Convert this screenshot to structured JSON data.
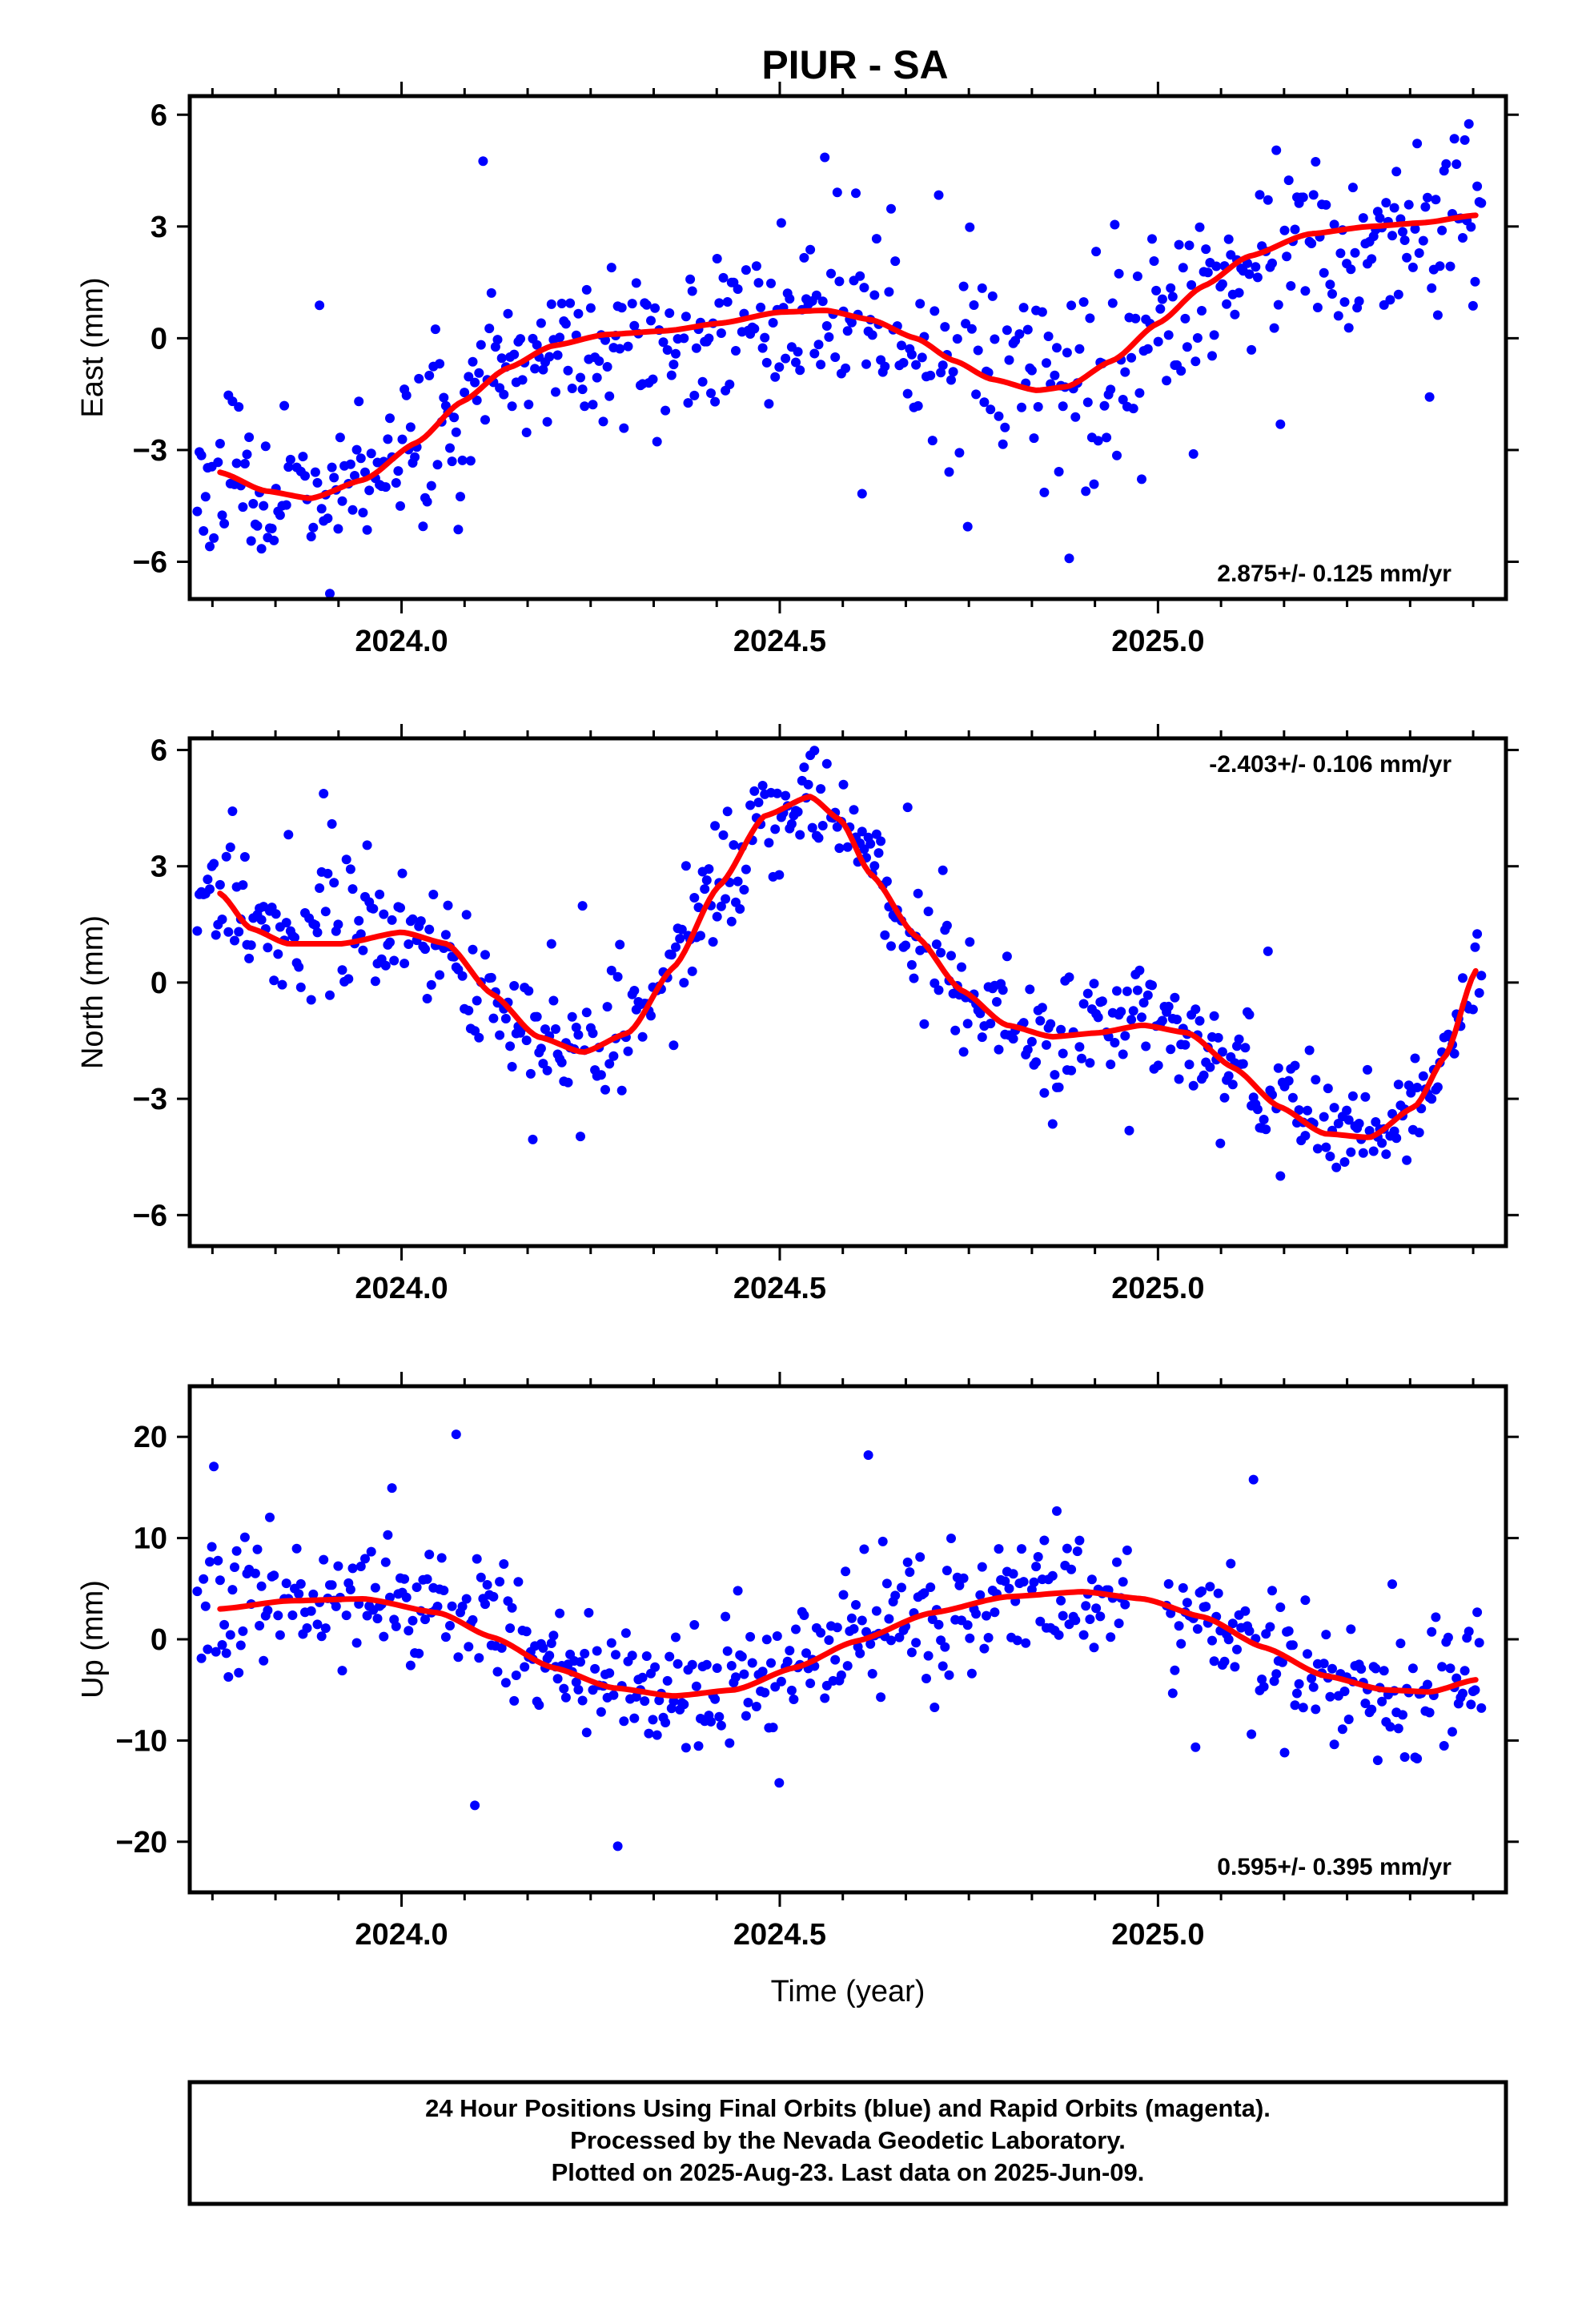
{
  "title": "PIUR - SA",
  "footer": {
    "lines": [
      "24 Hour Positions Using Final Orbits (blue) and Rapid Orbits (magenta).",
      "Processed by the Nevada Geodetic Laboratory.",
      "Plotted on 2025-Aug-23. Last data on 2025-Jun-09."
    ]
  },
  "colors": {
    "points": "#0000ff",
    "fit": "#ff0000",
    "frame": "#000000"
  },
  "chart_data": [
    {
      "type": "scatter",
      "ylabel": "East (mm)",
      "xlabel": "",
      "xlim": [
        2023.72,
        2025.46
      ],
      "ylim": [
        -7,
        6.5
      ],
      "xticks": [
        2024.0,
        2024.5,
        2025.0
      ],
      "xtick_labels": [
        "2024.0",
        "2024.5",
        "2025.0"
      ],
      "yticks": [
        -6,
        -3,
        0,
        3,
        6
      ],
      "ytick_labels": [
        "−6",
        "−3",
        "0",
        "3",
        "6"
      ],
      "rate_label": "2.875+/- 0.125 mm/yr",
      "rate_position": "bottom-right",
      "seed": 11,
      "noise": 1.1,
      "outlier_frac": 0.03,
      "gaps": [],
      "sparse": [
        [
          2024.73,
          2024.95,
          1.9
        ]
      ],
      "fit": {
        "x": [
          2023.76,
          2023.82,
          2023.88,
          2023.95,
          2024.02,
          2024.08,
          2024.14,
          2024.2,
          2024.27,
          2024.35,
          2024.42,
          2024.5,
          2024.56,
          2024.62,
          2024.68,
          2024.73,
          2024.78,
          2024.84,
          2024.88,
          2024.94,
          2025.0,
          2025.06,
          2025.12,
          2025.2,
          2025.28,
          2025.35,
          2025.42
        ],
        "y": [
          -3.6,
          -4.1,
          -4.3,
          -3.8,
          -2.8,
          -1.7,
          -0.8,
          -0.2,
          0.1,
          0.2,
          0.4,
          0.7,
          0.75,
          0.5,
          0.0,
          -0.6,
          -1.1,
          -1.4,
          -1.3,
          -0.6,
          0.4,
          1.4,
          2.2,
          2.8,
          3.0,
          3.1,
          3.3
        ]
      }
    },
    {
      "type": "scatter",
      "ylabel": "North (mm)",
      "xlabel": "",
      "xlim": [
        2023.72,
        2025.46
      ],
      "ylim": [
        -6.8,
        6.3
      ],
      "xticks": [
        2024.0,
        2024.5,
        2025.0
      ],
      "xtick_labels": [
        "2024.0",
        "2024.5",
        "2025.0"
      ],
      "yticks": [
        -6,
        -3,
        0,
        3,
        6
      ],
      "ytick_labels": [
        "−6",
        "−3",
        "0",
        "3",
        "6"
      ],
      "rate_label": "-2.403+/- 0.106 mm/yr",
      "rate_position": "top-right",
      "seed": 23,
      "noise": 0.75,
      "outlier_frac": 0.02,
      "gaps": [],
      "sparse": [],
      "fit": {
        "x": [
          2023.76,
          2023.8,
          2023.85,
          2023.92,
          2024.0,
          2024.06,
          2024.12,
          2024.18,
          2024.24,
          2024.3,
          2024.36,
          2024.42,
          2024.48,
          2024.54,
          2024.58,
          2024.62,
          2024.68,
          2024.74,
          2024.8,
          2024.86,
          2024.92,
          2024.98,
          2025.04,
          2025.1,
          2025.16,
          2025.22,
          2025.28,
          2025.34,
          2025.38,
          2025.42
        ],
        "y": [
          2.3,
          1.4,
          1.0,
          1.0,
          1.3,
          1.0,
          -0.3,
          -1.4,
          -1.8,
          -1.3,
          0.4,
          2.5,
          4.3,
          4.8,
          4.2,
          2.8,
          1.2,
          -0.2,
          -1.1,
          -1.4,
          -1.3,
          -1.1,
          -1.3,
          -2.2,
          -3.2,
          -3.9,
          -4.0,
          -3.2,
          -1.9,
          0.3
        ]
      }
    },
    {
      "type": "scatter",
      "ylabel": "Up (mm)",
      "xlabel": "Time (year)",
      "xlim": [
        2023.72,
        2025.46
      ],
      "ylim": [
        -25,
        25
      ],
      "xticks": [
        2024.0,
        2024.5,
        2025.0
      ],
      "xtick_labels": [
        "2024.0",
        "2024.5",
        "2025.0"
      ],
      "yticks": [
        -20,
        -10,
        0,
        10,
        20
      ],
      "ytick_labels": [
        "−20",
        "−10",
        "0",
        "10",
        "20"
      ],
      "rate_label": "0.595+/- 0.395 mm/yr",
      "rate_position": "bottom-right",
      "seed": 37,
      "noise": 3.2,
      "outlier_frac": 0.025,
      "gaps": [
        [
          2024.96,
          2025.01
        ]
      ],
      "sparse": [],
      "fit": {
        "x": [
          2023.76,
          2023.85,
          2023.95,
          2024.05,
          2024.12,
          2024.2,
          2024.28,
          2024.36,
          2024.44,
          2024.52,
          2024.6,
          2024.7,
          2024.8,
          2024.9,
          2024.98,
          2025.06,
          2025.14,
          2025.22,
          2025.3,
          2025.36,
          2025.42
        ],
        "y": [
          3.0,
          3.8,
          4.0,
          2.6,
          0.2,
          -2.8,
          -4.8,
          -5.6,
          -5.0,
          -2.8,
          -0.2,
          2.6,
          4.2,
          4.7,
          4.0,
          2.2,
          -0.8,
          -3.6,
          -5.0,
          -5.2,
          -4.0
        ]
      }
    }
  ]
}
